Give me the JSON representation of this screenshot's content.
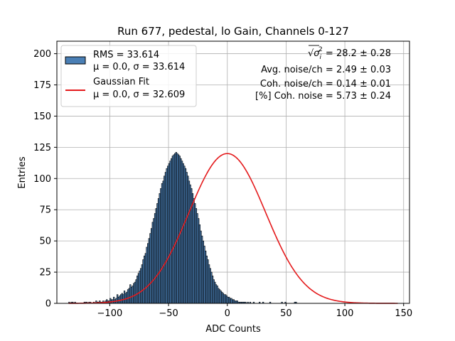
{
  "chart_data": {
    "type": "bar",
    "title": "Run 677, pedestal, lo Gain, Channels 0-127",
    "xlabel": "ADC Counts",
    "ylabel": "Entries",
    "xlim": [
      -145,
      155
    ],
    "ylim": [
      0,
      210
    ],
    "xticks": [
      -100,
      -50,
      0,
      50,
      100,
      150
    ],
    "xtick_labels": [
      "−100",
      "−50",
      "0",
      "50",
      "100",
      "150"
    ],
    "yticks": [
      0,
      25,
      50,
      75,
      100,
      125,
      150,
      175,
      200
    ],
    "ytick_labels": [
      "0",
      "25",
      "50",
      "75",
      "100",
      "125",
      "150",
      "175",
      "200"
    ],
    "grid": true,
    "histogram": {
      "bin_width": 1,
      "x_start": -135,
      "values": [
        1,
        0,
        1,
        1,
        0,
        1,
        0,
        0,
        0,
        0,
        0,
        0,
        0,
        1,
        1,
        1,
        0,
        1,
        1,
        0,
        0,
        1,
        0,
        2,
        1,
        1,
        2,
        1,
        1,
        2,
        1,
        2,
        3,
        2,
        2,
        4,
        3,
        3,
        5,
        3,
        4,
        7,
        5,
        6,
        7,
        8,
        7,
        10,
        8,
        9,
        11,
        12,
        15,
        13,
        14,
        16,
        17,
        19,
        22,
        24,
        26,
        28,
        31,
        35,
        38,
        40,
        45,
        48,
        52,
        56,
        60,
        65,
        68,
        72,
        76,
        80,
        84,
        88,
        92,
        96,
        98,
        102,
        105,
        108,
        110,
        112,
        114,
        116,
        118,
        119,
        120,
        121,
        120,
        119,
        118,
        116,
        114,
        112,
        110,
        108,
        105,
        102,
        98,
        95,
        92,
        88,
        84,
        80,
        76,
        72,
        68,
        63,
        58,
        54,
        50,
        46,
        42,
        38,
        35,
        31,
        28,
        25,
        22,
        19,
        17,
        15,
        14,
        12,
        11,
        10,
        9,
        8,
        7,
        7,
        6,
        5,
        5,
        4,
        4,
        3,
        3,
        2,
        2,
        2,
        1,
        1,
        1,
        1,
        1,
        1,
        1,
        0,
        1,
        0,
        1,
        0,
        0,
        1,
        0,
        0,
        0,
        0,
        1,
        0,
        0,
        1,
        0,
        0,
        0,
        0,
        0,
        1,
        0,
        0,
        0,
        0,
        0,
        0,
        0,
        0,
        0,
        1,
        0,
        0,
        1,
        0,
        0,
        0,
        0,
        0,
        0,
        0,
        1,
        1,
        0,
        0,
        0,
        0,
        0,
        0,
        0,
        0,
        0,
        0,
        0,
        0,
        0,
        0,
        0,
        0,
        0,
        0,
        0,
        0,
        0,
        0,
        0,
        0,
        0,
        0,
        0,
        0,
        0,
        0,
        0,
        0,
        0,
        0,
        0,
        0,
        0,
        0,
        0,
        0,
        0,
        0,
        0,
        0,
        0,
        0,
        0,
        0,
        0,
        0,
        0,
        0,
        0,
        0,
        0,
        0,
        0,
        0,
        0,
        0,
        0,
        0,
        0,
        0,
        0,
        0,
        0,
        0,
        0,
        0,
        0,
        0,
        0,
        0,
        0,
        0,
        0,
        0,
        0,
        0,
        0,
        0,
        0,
        0,
        0,
        0,
        0,
        0,
        0,
        0,
        0,
        0,
        0,
        0,
        0,
        0
      ],
      "bar_color": "#4a7fb5",
      "edge_color": "#000000",
      "label_lines": [
        "RMS = 33.614",
        "μ = 0.0, σ = 33.614"
      ]
    },
    "fit": {
      "type": "gaussian",
      "amplitude": 120,
      "mu": 0.0,
      "sigma": 32.609,
      "color": "#e41a1c",
      "label_lines": [
        "Gaussian Fit",
        "μ = 0.0, σ = 32.609"
      ]
    },
    "legend": {
      "location": "top-left"
    },
    "annotations": [
      {
        "sqrt_symbol": "√",
        "sigma_symbol": "σ",
        "sub": "i",
        "sup": "2",
        "rest": " = 28.2 ± 0.28"
      },
      {
        "text": "Avg. noise/ch = 2.49 ± 0.03"
      },
      {
        "text": "Coh. noise/ch = 0.14 ± 0.01"
      },
      {
        "text": "[%] Coh. noise = 5.73 ± 0.24"
      }
    ]
  }
}
